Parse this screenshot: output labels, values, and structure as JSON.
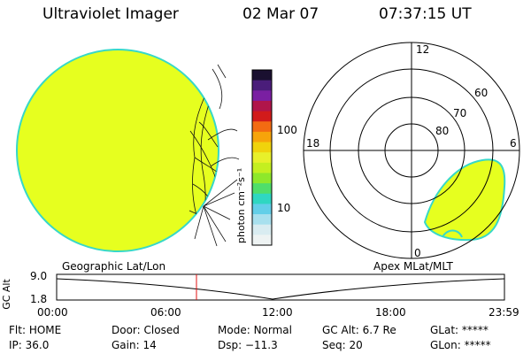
{
  "header": {
    "title": "Ultraviolet Imager",
    "date": "02 Mar 07",
    "time": "07:37:15 UT"
  },
  "colorbar": {
    "unit_label": "photon cm⁻²s⁻¹",
    "ticks": [
      "100",
      "10"
    ],
    "colors": [
      "#1a1030",
      "#4a1d7a",
      "#7a1fa2",
      "#b0154a",
      "#d21b1b",
      "#f36b12",
      "#f7a40a",
      "#f0d30c",
      "#e8f02a",
      "#c4ef20",
      "#8ee82b",
      "#4fde6a",
      "#2fd7c1",
      "#63cfe8",
      "#a8e0ee",
      "#d9ecf1",
      "#eef3f3"
    ]
  },
  "left_panel": {
    "label": "Geographic Lat/Lon",
    "fill_color": "#e6ff1f"
  },
  "right_panel": {
    "label": "Apex MLat/MLT",
    "mlt_labels": {
      "top": "12",
      "left": "18",
      "right": "6",
      "bottom": "0"
    },
    "lat_labels": [
      "60",
      "70",
      "80"
    ]
  },
  "timeline": {
    "ylabel": "GC Alt",
    "y_ticks": [
      "9.0",
      "1.8"
    ],
    "x_ticks": [
      "00:00",
      "06:00",
      "12:00",
      "18:00",
      "23:59"
    ],
    "marker_time": "07:37",
    "marker_color": "#e01010"
  },
  "status": {
    "row1": [
      {
        "key": "Flt:",
        "value": "HOME"
      },
      {
        "key": "Door:",
        "value": "Closed"
      },
      {
        "key": "Mode:",
        "value": "Normal"
      },
      {
        "key": "GC Alt:",
        "value": "6.7 Re"
      },
      {
        "key": "GLat:",
        "value": "*****"
      }
    ],
    "row2": [
      {
        "key": "IP:",
        "value": "36.0"
      },
      {
        "key": "Gain:",
        "value": "14"
      },
      {
        "key": "Dsp:",
        "value": "−11.3"
      },
      {
        "key": "Seq:",
        "value": "20"
      },
      {
        "key": "GLon:",
        "value": "*****"
      }
    ]
  }
}
